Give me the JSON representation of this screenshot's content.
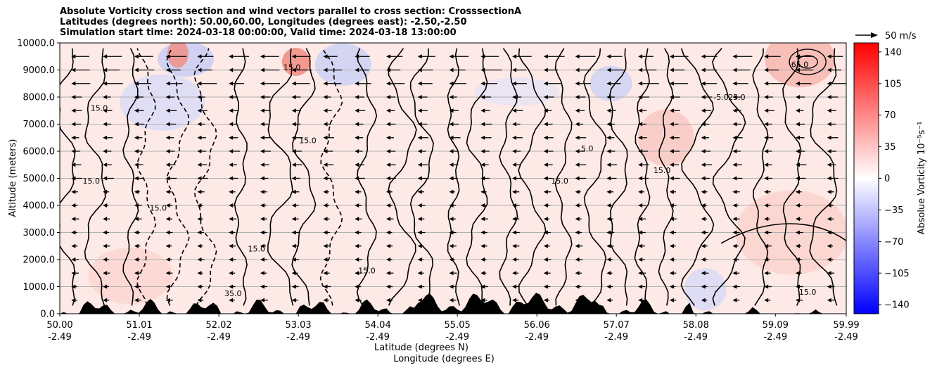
{
  "title_lines": [
    "Absolute Vorticity cross section and wind vectors parallel to cross section: CrosssectionA",
    "Latitudes (degrees north): 50.00,60.00, Longitudes (degrees east): -2.50,-2.50",
    "Simulation start time: 2024-03-18 00:00:00, Valid time: 2024-03-18 13:00:00"
  ],
  "chart_data": {
    "type": "heatmap",
    "description_type": "cross-section contour plot with wind vectors",
    "ylabel": "Altitude (meters)",
    "xlabel_lines": [
      "Latitude (degrees N)",
      "Longitude (degrees E)"
    ],
    "ylim": [
      0,
      10000
    ],
    "xlim": [
      50.0,
      59.99
    ],
    "y_ticks": [
      "0.0",
      "1000.0",
      "2000.0",
      "3000.0",
      "4000.0",
      "5000.0",
      "6000.0",
      "7000.0",
      "8000.0",
      "9000.0",
      "10000.0"
    ],
    "x_ticks": [
      {
        "lat": "50.00",
        "lon": "-2.49"
      },
      {
        "lat": "51.01",
        "lon": "-2.49"
      },
      {
        "lat": "52.02",
        "lon": "-2.49"
      },
      {
        "lat": "53.03",
        "lon": "-2.49"
      },
      {
        "lat": "54.04",
        "lon": "-2.49"
      },
      {
        "lat": "55.05",
        "lon": "-2.49"
      },
      {
        "lat": "56.06",
        "lon": "-2.49"
      },
      {
        "lat": "57.07",
        "lon": "-2.49"
      },
      {
        "lat": "58.08",
        "lon": "-2.49"
      },
      {
        "lat": "59.09",
        "lon": "-2.49"
      },
      {
        "lat": "59.99",
        "lon": "-2.49"
      }
    ],
    "grid": true,
    "colorbar": {
      "label": "Absolue Vorticity 10⁻⁵s⁻¹",
      "range": [
        -150,
        150
      ],
      "ticks": [
        "140",
        "105",
        "70",
        "35",
        "0",
        "−35",
        "−70",
        "−105",
        "−140"
      ],
      "colormap": "bwr",
      "colors": {
        "low": "#0000ff",
        "mid": "#ffffff",
        "high": "#ff0000"
      }
    },
    "quiver_key": {
      "label": "50 m/s"
    },
    "contour_labels": [
      "5.0",
      "15.0",
      "25.0",
      "35.0",
      "65.0",
      "-5.0"
    ],
    "contours_shown_at": [
      {
        "lat": 50.5,
        "alt": 7500,
        "label": "15.0"
      },
      {
        "lat": 51.25,
        "alt": 3800,
        "label": "15.0"
      },
      {
        "lat": 50.4,
        "alt": 4800,
        "label": "15.0"
      },
      {
        "lat": 52.5,
        "alt": 2300,
        "label": "15.0"
      },
      {
        "lat": 53.15,
        "alt": 6300,
        "label": "15.0"
      },
      {
        "lat": 53.9,
        "alt": 1500,
        "label": "15.0"
      },
      {
        "lat": 56.35,
        "alt": 4800,
        "label": "15.0"
      },
      {
        "lat": 57.65,
        "alt": 5200,
        "label": "15.0"
      },
      {
        "lat": 59.5,
        "alt": 700,
        "label": "15.0"
      },
      {
        "lat": 56.7,
        "alt": 6000,
        "label": "5.0"
      },
      {
        "lat": 52.2,
        "alt": 650,
        "label": "35.0"
      },
      {
        "lat": 59.4,
        "alt": 9100,
        "label": "65.0"
      },
      {
        "lat": 58.6,
        "alt": 7900,
        "label": "25.0"
      },
      {
        "lat": 58.4,
        "alt": 7900,
        "label": "-5.0"
      },
      {
        "lat": 52.95,
        "alt": 9000,
        "label": "15.0"
      }
    ],
    "wind_vectors": {
      "direction": "toward lower latitude",
      "magnitude_upper_levels": "strong",
      "magnitude_lower_levels": "weak"
    }
  }
}
